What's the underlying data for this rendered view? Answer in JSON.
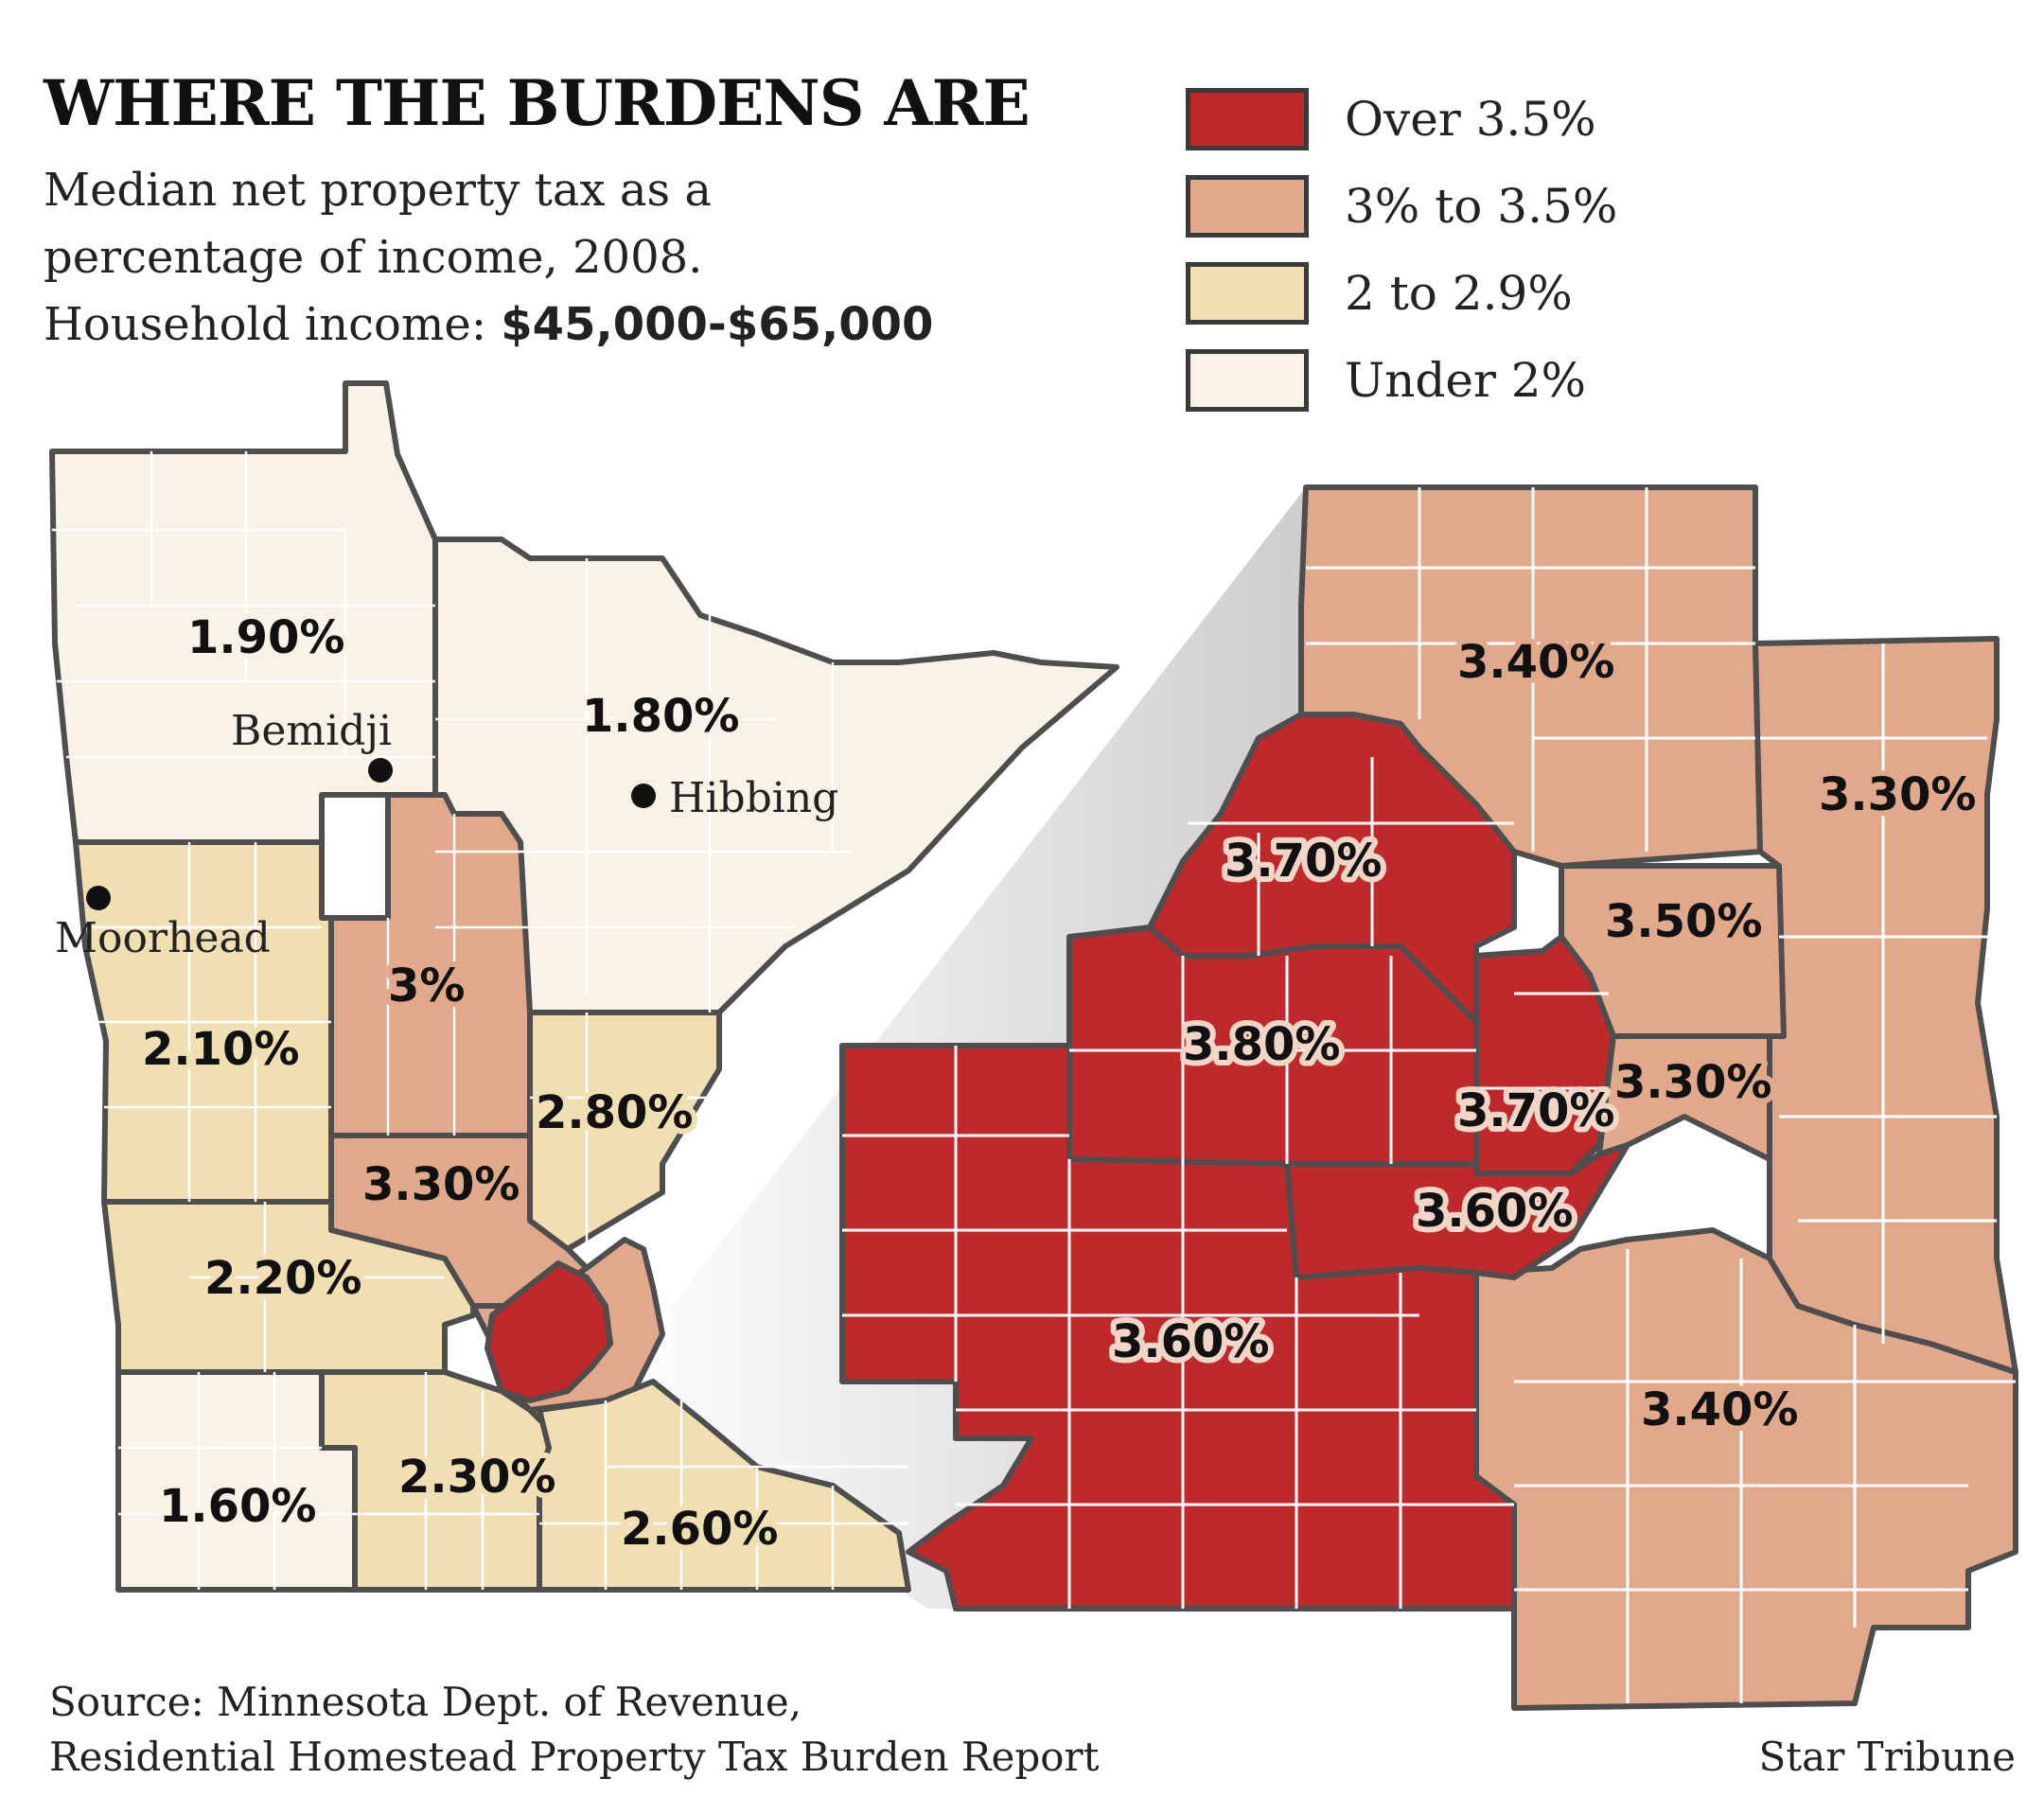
{
  "title": "WHERE THE BURDENS ARE",
  "subtitle": {
    "line1": "Median net property tax as a",
    "line2": "percentage of income, 2008.",
    "line3_prefix": "Household income: ",
    "line3_value": "$45,000-$65,000"
  },
  "legend": [
    {
      "label": "Over 3.5%",
      "color": "#c0292c"
    },
    {
      "label": "3% to 3.5%",
      "color": "#e1a98b"
    },
    {
      "label": "2 to 2.9%",
      "color": "#f1dfb4"
    },
    {
      "label": "Under 2%",
      "color": "#f8f3e6"
    }
  ],
  "colors": {
    "border": "#4e4e4e",
    "inner_lines": "#ffffff",
    "zoom_wedge": "#c9c9c9"
  },
  "state_map": {
    "regions": [
      {
        "id": "northwest",
        "value": "1.90%",
        "class": "Under 2%"
      },
      {
        "id": "northeast",
        "value": "1.80%",
        "class": "Under 2%"
      },
      {
        "id": "west-central",
        "value": "2.10%",
        "class": "2 to 2.9%"
      },
      {
        "id": "central",
        "value": "3%",
        "class": "3% to 3.5%"
      },
      {
        "id": "east-central",
        "value": "2.80%",
        "class": "2 to 2.9%"
      },
      {
        "id": "central-corridor",
        "value": "3.30%",
        "class": "3% to 3.5%"
      },
      {
        "id": "southwest-central",
        "value": "2.20%",
        "class": "2 to 2.9%"
      },
      {
        "id": "southwest",
        "value": "1.60%",
        "class": "Under 2%"
      },
      {
        "id": "south-central",
        "value": "2.30%",
        "class": "2 to 2.9%"
      },
      {
        "id": "southeast",
        "value": "2.60%",
        "class": "2 to 2.9%"
      },
      {
        "id": "twin-cities-core",
        "value": "",
        "class": "Over 3.5%"
      },
      {
        "id": "metro-ring",
        "value": "",
        "class": "3% to 3.5%"
      }
    ],
    "cities": [
      "Bemidji",
      "Hibbing",
      "Moorhead"
    ]
  },
  "metro_map": {
    "regions": [
      {
        "id": "north-anoka",
        "value": "3.40%",
        "class": "3% to 3.5%"
      },
      {
        "id": "east-washington",
        "value": "3.30%",
        "class": "3% to 3.5%"
      },
      {
        "id": "northwest-hennepin",
        "value": "3.70%",
        "class": "Over 3.5%"
      },
      {
        "id": "northeast-ramsey",
        "value": "3.50%",
        "class": "3% to 3.5%"
      },
      {
        "id": "central-hennepin",
        "value": "3.80%",
        "class": "Over 3.5%"
      },
      {
        "id": "minneapolis",
        "value": "3.70%",
        "class": "Over 3.5%"
      },
      {
        "id": "st-paul",
        "value": "3.30%",
        "class": "3% to 3.5%"
      },
      {
        "id": "inner-south",
        "value": "3.60%",
        "class": "Over 3.5%"
      },
      {
        "id": "southwest-hennepin",
        "value": "3.60%",
        "class": "Over 3.5%"
      },
      {
        "id": "dakota",
        "value": "3.40%",
        "class": "3% to 3.5%"
      }
    ]
  },
  "source": {
    "line1": "Source: Minnesota Dept. of Revenue,",
    "line2": "Residential Homestead Property Tax Burden Report"
  },
  "credit": "Star Tribune"
}
